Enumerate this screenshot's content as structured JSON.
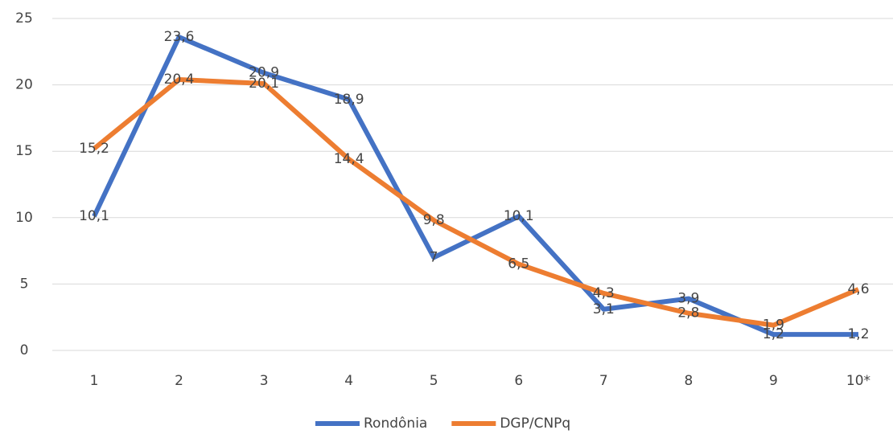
{
  "chart_data": {
    "type": "line",
    "categories": [
      "1",
      "2",
      "3",
      "4",
      "5",
      "6",
      "7",
      "8",
      "9",
      "10*"
    ],
    "series": [
      {
        "name": "Rondônia",
        "color": "#4472c4",
        "values": [
          10.1,
          23.6,
          20.9,
          18.9,
          7,
          10.1,
          3.1,
          3.9,
          1.2,
          1.2
        ],
        "value_labels": [
          "10,1",
          "23,6",
          "20,9",
          "18,9",
          "7",
          "10,1",
          "3,1",
          "3,9",
          "1,2",
          "1,2"
        ]
      },
      {
        "name": "DGP/CNPq",
        "color": "#ed7d31",
        "values": [
          15.2,
          20.4,
          20.1,
          14.4,
          9.8,
          6.5,
          4.3,
          2.8,
          1.9,
          4.6
        ],
        "value_labels": [
          "15,2",
          "20,4",
          "20,1",
          "14,4",
          "9,8",
          "6,5",
          "4,3",
          "2,8",
          "1,9",
          "4,6"
        ]
      }
    ],
    "ylim": [
      0,
      25
    ],
    "yticks": [
      0,
      5,
      10,
      15,
      20,
      25
    ],
    "grid": true,
    "legend": "bottom"
  }
}
